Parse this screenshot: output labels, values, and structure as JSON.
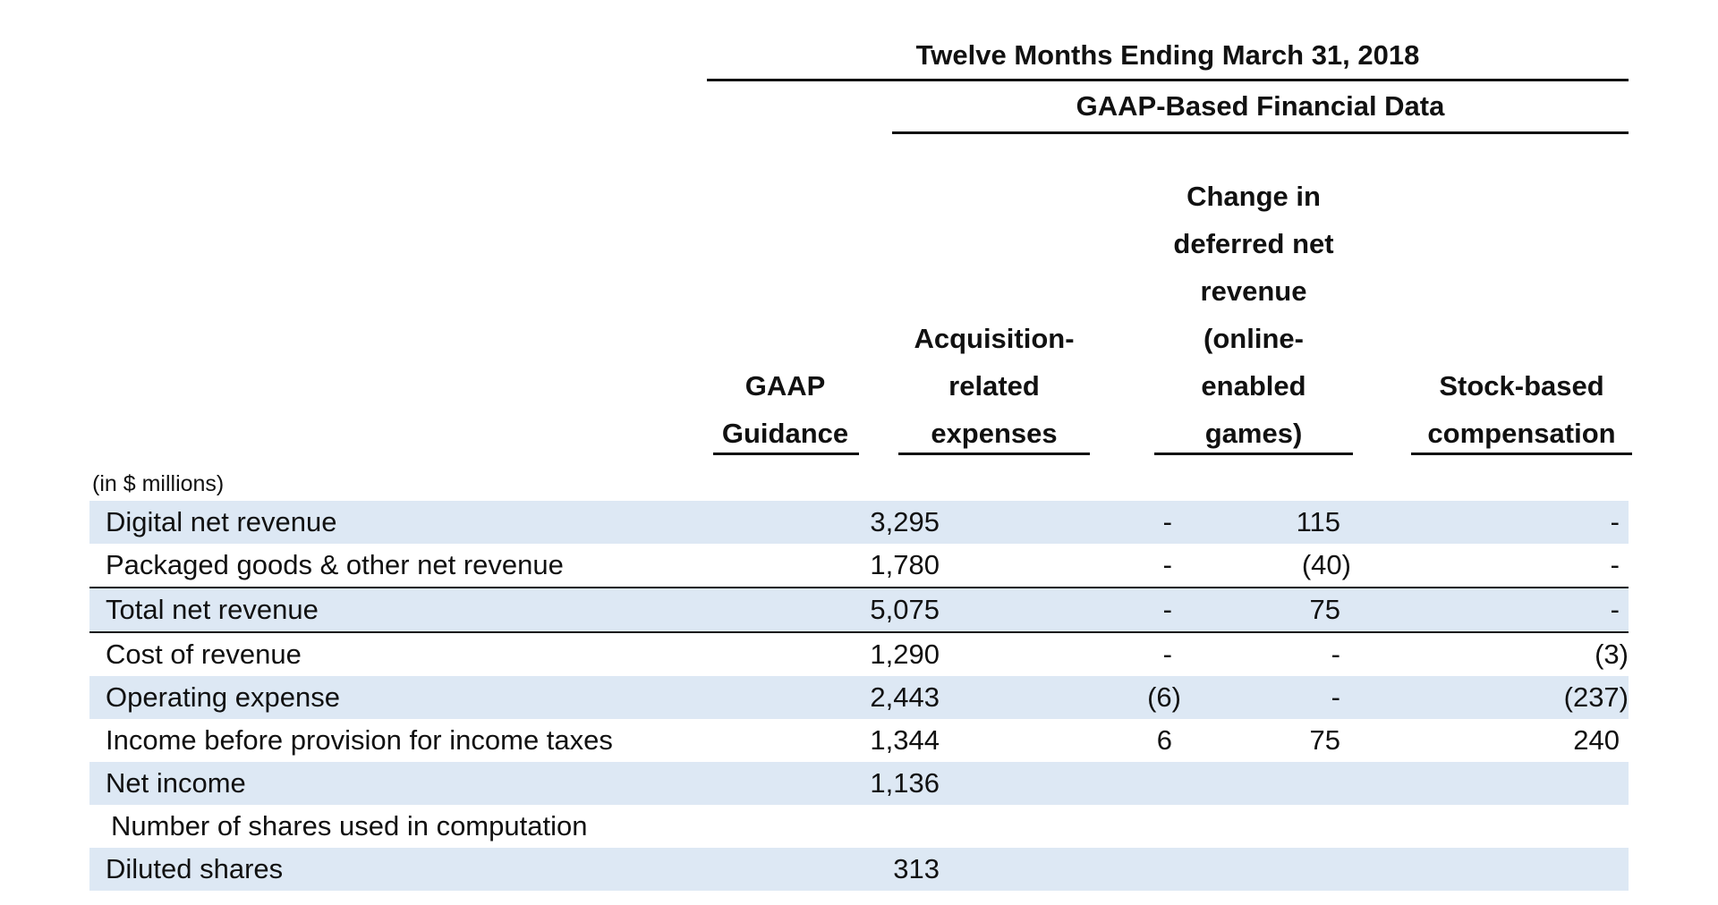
{
  "header": {
    "period_title": "Twelve Months Ending March 31, 2018",
    "section_title": "GAAP-Based Financial Data"
  },
  "columns": [
    {
      "lines": [
        "GAAP",
        "Guidance"
      ]
    },
    {
      "lines": [
        "Acquisition-",
        "related",
        "expenses"
      ]
    },
    {
      "lines": [
        "Change in",
        "deferred net",
        "revenue",
        "(online-",
        "enabled",
        "games)"
      ]
    },
    {
      "lines": [
        "Stock-based",
        "compensation"
      ]
    }
  ],
  "units_note": "(in $ millions)",
  "rows": [
    {
      "label": "Digital net revenue",
      "values": [
        "3,295",
        "-",
        "115",
        "-"
      ]
    },
    {
      "label": "Packaged goods & other net revenue",
      "values": [
        "1,780",
        "-",
        "(40)",
        "-"
      ]
    },
    {
      "label": "Total net revenue",
      "values": [
        "5,075",
        "-",
        "75",
        "-"
      ]
    },
    {
      "label": "Cost of revenue",
      "values": [
        "1,290",
        "-",
        "-",
        "(3)"
      ]
    },
    {
      "label": "Operating expense",
      "values": [
        "2,443",
        "(6)",
        "-",
        "(237)"
      ]
    },
    {
      "label": "Income before provision for income taxes",
      "values": [
        "1,344",
        "6",
        "75",
        "240"
      ]
    },
    {
      "label": "Net income",
      "values": [
        "1,136",
        "",
        "",
        ""
      ]
    },
    {
      "label": "Number of shares used in computation",
      "values": [
        "",
        "",
        "",
        ""
      ]
    },
    {
      "label": "Diluted shares",
      "values": [
        "313",
        "",
        "",
        ""
      ]
    }
  ],
  "colors": {
    "row_shade": "#dde8f4",
    "rule": "#111111"
  }
}
